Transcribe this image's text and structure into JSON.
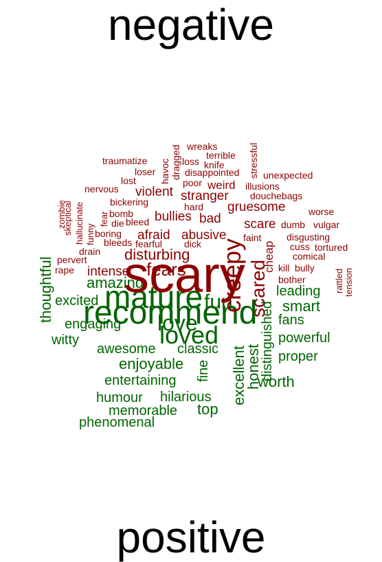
{
  "titles": {
    "top": "negative",
    "bottom": "positive"
  },
  "colors": {
    "negative": "#8b0000",
    "positive": "#006400",
    "title": "#000000"
  },
  "negative_words": [
    "scary",
    "creepy",
    "scared",
    "fears",
    "disturbing",
    "wreaks",
    "terrible",
    "knife",
    "loss",
    "disappointed",
    "dragged",
    "havoc",
    "traumatize",
    "loser",
    "lost",
    "stressful",
    "unexpected",
    "illusions",
    "poor",
    "weird",
    "violent",
    "nervous",
    "douchebags",
    "bickering",
    "stranger",
    "gruesome",
    "hard",
    "zombie",
    "skeptical",
    "hallucinate",
    "funny",
    "fear",
    "bomb",
    "die",
    "bleed",
    "worse",
    "bullies",
    "bad",
    "scare",
    "dumb",
    "vulgar",
    "boring",
    "afraid",
    "abusive",
    "faint",
    "disgusting",
    "drain",
    "bleeds",
    "fearful",
    "dick",
    "cheap",
    "cuss",
    "tortured",
    "pervert",
    "comical",
    "rape",
    "intense",
    "kill",
    "bully",
    "rattled",
    "tension",
    "bother"
  ],
  "positive_words": [
    "recommend",
    "mature",
    "loved",
    "love",
    "fun",
    "thoughtful",
    "amazing",
    "excited",
    "engaging",
    "witty",
    "leading",
    "smart",
    "fans",
    "awesome",
    "classic",
    "enjoyable",
    "powerful",
    "proper",
    "excellent",
    "honest",
    "distinguished",
    "entertaining",
    "fine",
    "worth",
    "humour",
    "hilarious",
    "memorable",
    "top",
    "phenomenal"
  ]
}
